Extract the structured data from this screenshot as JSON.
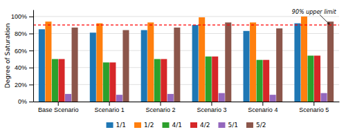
{
  "chart_data": {
    "type": "bar",
    "categories": [
      "Base Scenario",
      "Scenario 1",
      "Scenario 2",
      "Scenario 3",
      "Scenario 4",
      "Scenario 5"
    ],
    "series": [
      {
        "name": "1/1",
        "values": [
          0.85,
          0.81,
          0.84,
          0.9,
          0.83,
          0.92
        ]
      },
      {
        "name": "1/2",
        "values": [
          0.94,
          0.92,
          0.93,
          0.99,
          0.93,
          1.0
        ]
      },
      {
        "name": "4/1",
        "values": [
          0.5,
          0.46,
          0.5,
          0.53,
          0.49,
          0.54
        ]
      },
      {
        "name": "4/2",
        "values": [
          0.5,
          0.46,
          0.5,
          0.53,
          0.49,
          0.54
        ]
      },
      {
        "name": "5/1",
        "values": [
          0.09,
          0.08,
          0.09,
          0.1,
          0.08,
          0.1
        ]
      },
      {
        "name": "5/2",
        "values": [
          0.87,
          0.84,
          0.87,
          0.93,
          0.86,
          0.94
        ]
      }
    ],
    "ylabel": "Degree of Saturation",
    "ylim": [
      0,
      1.08
    ],
    "yticks": [
      {
        "value": 0,
        "label": "0%"
      },
      {
        "value": 0.2,
        "label": "20%"
      },
      {
        "value": 0.4,
        "label": "40%"
      },
      {
        "value": 0.6,
        "label": "60%"
      },
      {
        "value": 0.8,
        "label": "80%"
      },
      {
        "value": 1.0,
        "label": "100%"
      }
    ],
    "annotations": [
      {
        "text": "90% upper limit",
        "y": 0.9,
        "color": "#ff0000"
      }
    ],
    "grid": true,
    "legend": "bottom"
  }
}
